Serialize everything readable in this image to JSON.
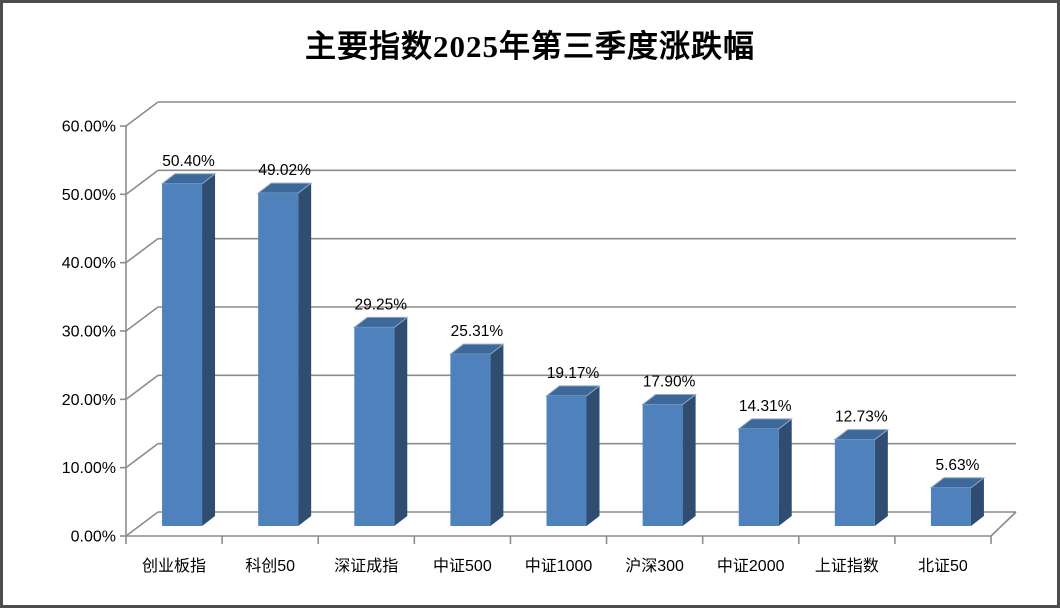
{
  "window": {
    "background": "#FFFFFF",
    "border_color": "#4D4D4D"
  },
  "chart_data": {
    "type": "bar",
    "variant": "3d-column",
    "title": "主要指数2025年第三季度涨跌幅",
    "categories": [
      "创业板指",
      "科创50",
      "深证成指",
      "中证500",
      "中证1000",
      "沪深300",
      "中证2000",
      "上证指数",
      "北证50"
    ],
    "values": [
      50.4,
      49.02,
      29.25,
      25.31,
      19.17,
      17.9,
      14.31,
      12.73,
      5.63
    ],
    "data_labels": [
      "50.40%",
      "49.02%",
      "29.25%",
      "25.31%",
      "19.17%",
      "17.90%",
      "14.31%",
      "12.73%",
      "5.63%"
    ],
    "y_ticks": [
      "0.00%",
      "10.00%",
      "20.00%",
      "30.00%",
      "40.00%",
      "50.00%",
      "60.00%"
    ],
    "ylim": [
      0,
      60
    ],
    "y_tick_step": 10,
    "xlabel": "",
    "ylabel": "",
    "grid": true,
    "legend": false,
    "colors": {
      "bar_front": "#4F81BD",
      "bar_side": "#2F4D71",
      "bar_top": "#3D6899",
      "bar_edge_light": "#8FA9CB",
      "gridline": "#8C8C8C",
      "axis": "#8C8C8C",
      "text": "#000000"
    }
  }
}
